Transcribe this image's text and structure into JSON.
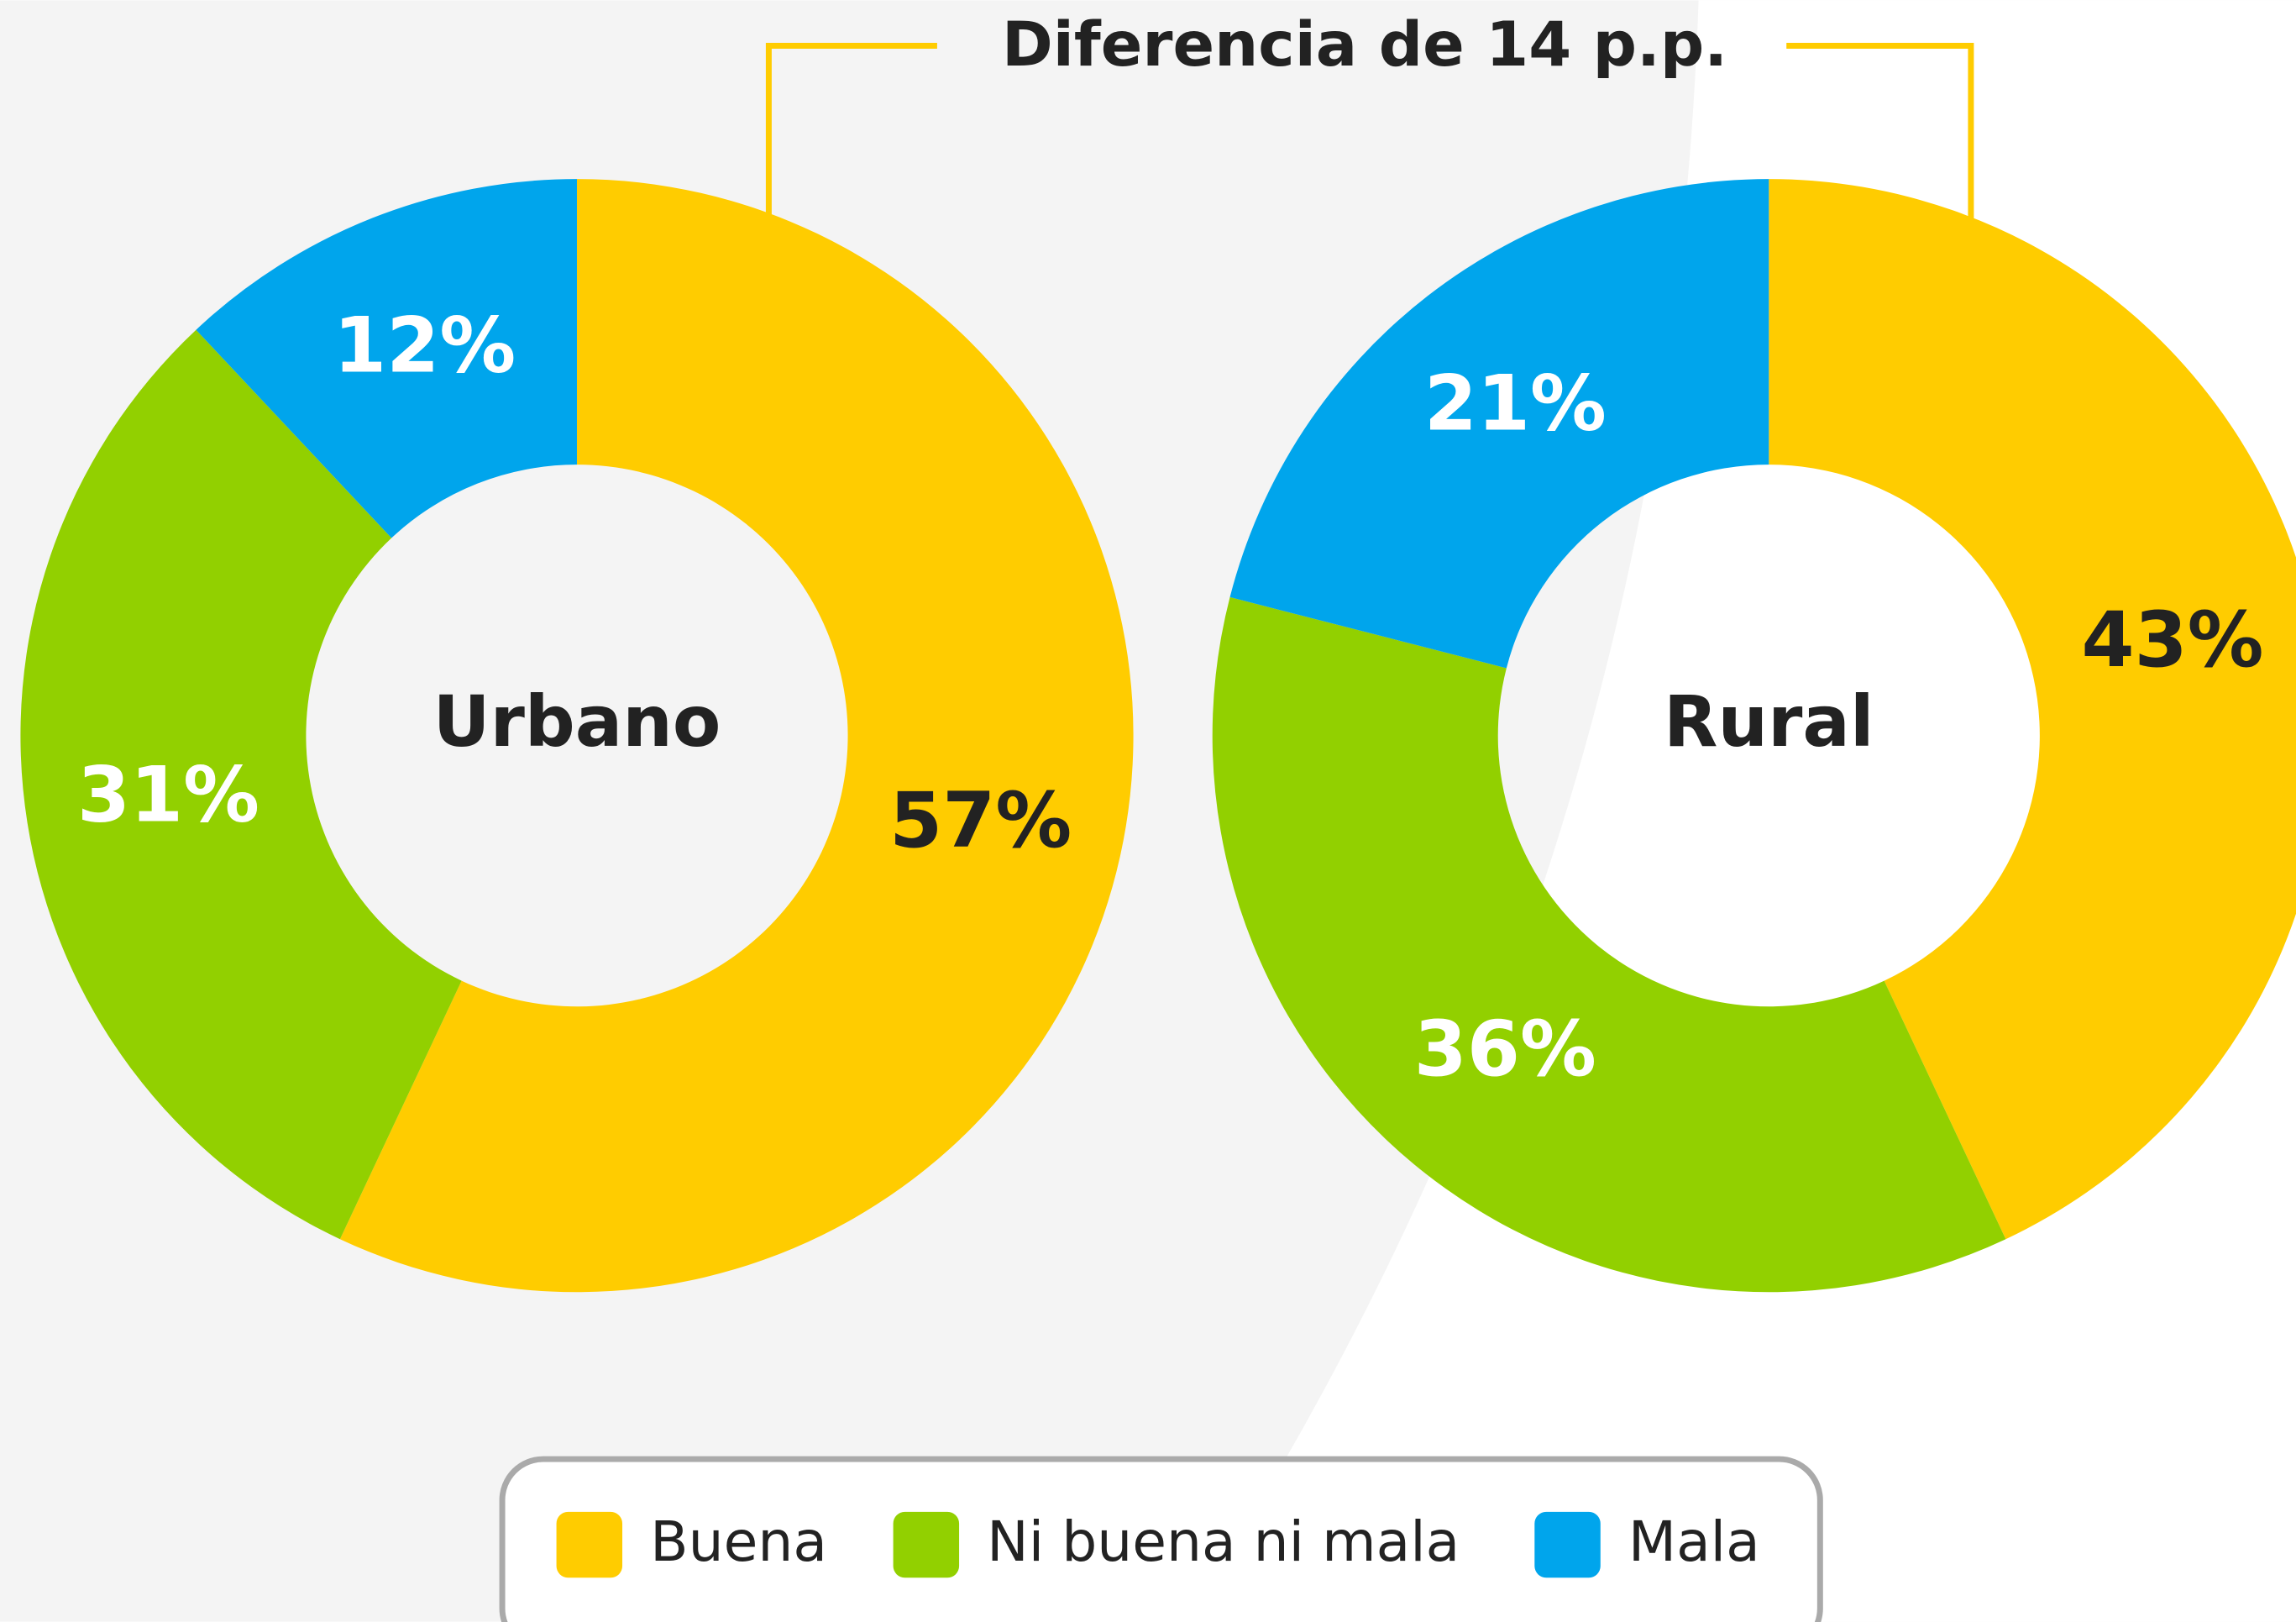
{
  "annotation": "Diferencia de 14 p.p.",
  "chart_data": [
    {
      "type": "donut",
      "title": "Urbano",
      "categories": [
        "Buena",
        "Ni buena ni mala",
        "Mala"
      ],
      "values": [
        57,
        31,
        12
      ],
      "value_labels": [
        "57%",
        "31%",
        "12%"
      ],
      "colors": [
        "#ffcc00",
        "#92d000",
        "#00a5ec"
      ]
    },
    {
      "type": "donut",
      "title": "Rural",
      "categories": [
        "Buena",
        "Ni buena ni mala",
        "Mala"
      ],
      "values": [
        43,
        36,
        21
      ],
      "value_labels": [
        "43%",
        "36%",
        "21%"
      ],
      "colors": [
        "#ffcc00",
        "#92d000",
        "#00a5ec"
      ]
    }
  ]
}
